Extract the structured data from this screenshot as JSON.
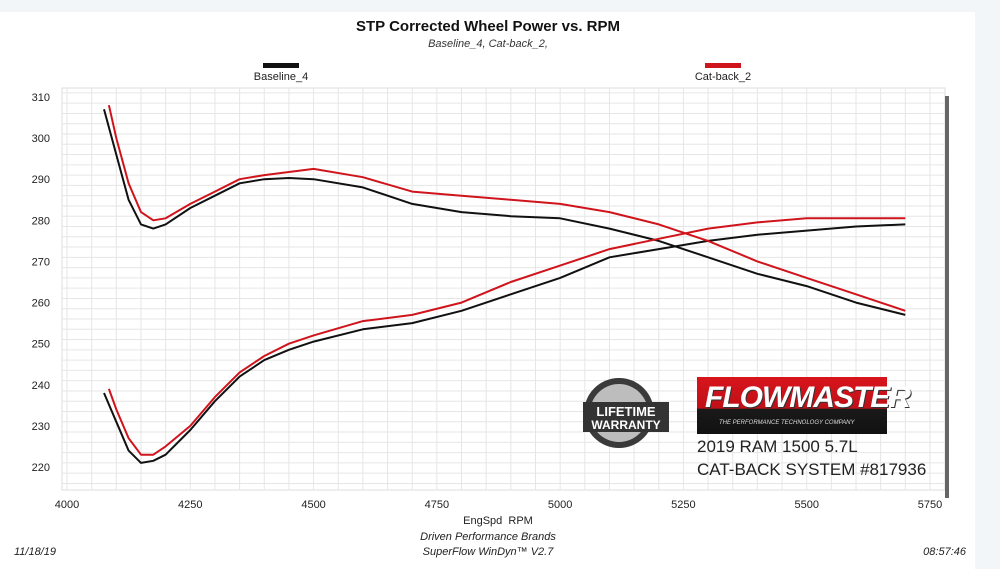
{
  "chart_data": {
    "type": "line",
    "title": "STP Corrected Wheel Power vs. RPM",
    "subtitle": "Baseline_4, Cat-back_2,",
    "xlabel": "EngSpd  RPM",
    "ylabel": "",
    "xlim": [
      4000,
      5750
    ],
    "ylim": [
      216,
      312
    ],
    "xticks": [
      4000,
      4250,
      4500,
      4750,
      5000,
      5250,
      5500,
      5750
    ],
    "yticks": [
      220,
      230,
      240,
      250,
      260,
      270,
      280,
      290,
      300,
      310
    ],
    "grid": true,
    "legend_placement": "top",
    "series": [
      {
        "name": "Baseline_4",
        "color": "#111111",
        "curves": [
          {
            "x": [
              4075,
              4100,
              4125,
              4150,
              4175,
              4200,
              4250,
              4300,
              4350,
              4400,
              4450,
              4500,
              4600,
              4700,
              4800,
              4900,
              5000,
              5100,
              5200,
              5300,
              5400,
              5500,
              5600,
              5700
            ],
            "y": [
              307,
              296,
              285,
              279,
              278,
              279,
              283,
              286,
              289,
              290,
              290.3,
              290,
              288,
              284,
              282,
              281,
              280.5,
              278,
              275,
              271,
              267,
              264,
              260,
              257
            ]
          },
          {
            "x": [
              4075,
              4100,
              4125,
              4150,
              4175,
              4200,
              4250,
              4300,
              4350,
              4400,
              4450,
              4500,
              4600,
              4700,
              4800,
              4900,
              5000,
              5100,
              5200,
              5300,
              5400,
              5500,
              5600,
              5700
            ],
            "y": [
              238,
              231,
              224,
              221,
              221.5,
              223,
              229,
              236,
              242,
              246,
              248.5,
              250.5,
              253.5,
              255,
              258,
              262,
              266,
              271,
              273,
              275,
              276.5,
              277.5,
              278.5,
              279
            ]
          }
        ]
      },
      {
        "name": "Cat-back_2",
        "color": "#d0141c",
        "curves": [
          {
            "x": [
              4085,
              4100,
              4125,
              4150,
              4175,
              4200,
              4250,
              4300,
              4350,
              4400,
              4500,
              4600,
              4700,
              4800,
              4900,
              5000,
              5100,
              5200,
              5300,
              5400,
              5500,
              5600,
              5700
            ],
            "y": [
              308,
              300,
              289,
              282,
              280,
              280.5,
              284,
              287,
              290,
              291,
              292.5,
              290.5,
              287,
              286,
              285,
              284,
              282,
              279,
              275,
              270,
              266,
              262,
              258
            ]
          },
          {
            "x": [
              4085,
              4100,
              4125,
              4150,
              4175,
              4200,
              4250,
              4300,
              4350,
              4400,
              4450,
              4500,
              4600,
              4700,
              4800,
              4900,
              5000,
              5100,
              5200,
              5300,
              5400,
              5500,
              5600,
              5700
            ],
            "y": [
              239,
              234,
              227,
              223,
              223,
              225,
              230,
              237,
              243,
              247,
              250,
              252,
              255.5,
              257,
              260,
              265,
              269,
              273,
              275.5,
              278,
              279.5,
              280.5,
              280.5,
              280.5
            ]
          }
        ]
      }
    ]
  },
  "footer": {
    "company": "Driven Performance Brands",
    "software": "SuperFlow WinDyn™  V2.7",
    "date": "11/18/19",
    "time": "08:57:46"
  },
  "branding": {
    "logo_text": "FLOWMASTER",
    "logo_tagline": "THE PERFORMANCE TECHNOLOGY COMPANY",
    "badge_text": "LIFETIME WARRANTY",
    "vehicle": "2019 RAM 1500 5.7L",
    "product": "CAT-BACK SYSTEM #817936"
  }
}
